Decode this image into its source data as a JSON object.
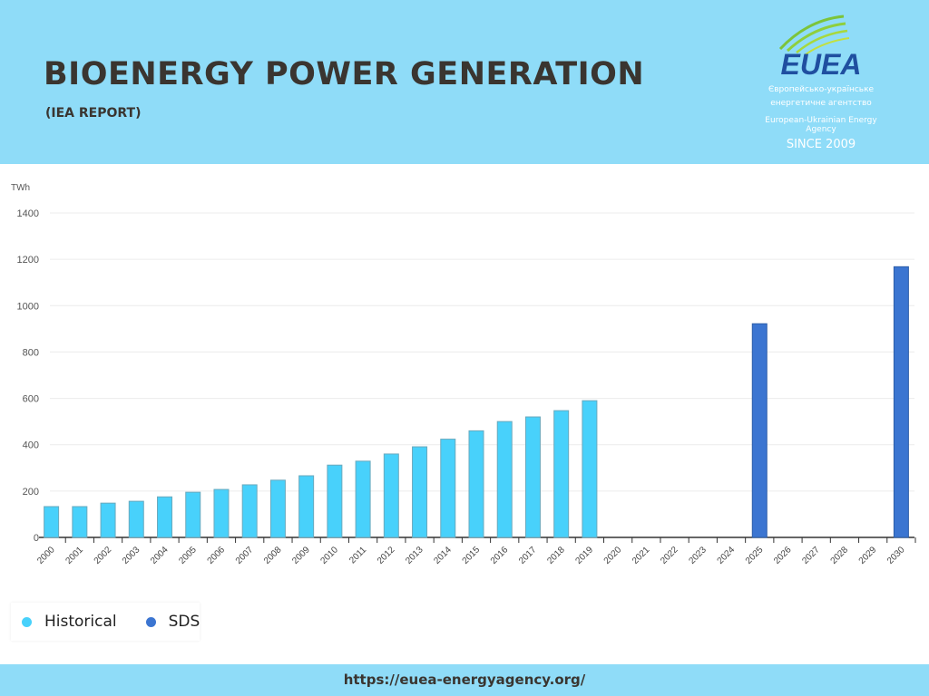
{
  "header": {
    "title": "BIOENERGY POWER GENERATION",
    "subtitle": "(IEA REPORT)"
  },
  "logo": {
    "brand": "EUEA",
    "line_ua_1": "Європейсько-українське",
    "line_ua_2": "енергетичне агентство",
    "line_en": "European-Ukrainian Energy Agency",
    "since": "SINCE 2009"
  },
  "footer": {
    "url": "https://euea-energyagency.org/"
  },
  "chart_data": {
    "type": "bar",
    "ylabel": "TWh",
    "ylim": [
      0,
      1400
    ],
    "yticks": [
      0,
      200,
      400,
      600,
      800,
      1000,
      1200,
      1400
    ],
    "grid": true,
    "legend_placement": "bottom-left",
    "categories": [
      "2000",
      "2001",
      "2002",
      "2003",
      "2004",
      "2005",
      "2006",
      "2007",
      "2008",
      "2009",
      "2010",
      "2011",
      "2012",
      "2013",
      "2014",
      "2015",
      "2016",
      "2017",
      "2018",
      "2019",
      "2020",
      "2021",
      "2022",
      "2023",
      "2024",
      "2025",
      "2026",
      "2027",
      "2028",
      "2029",
      "2030"
    ],
    "series": [
      {
        "name": "Historical",
        "color": "#48d1fb",
        "values": [
          133,
          133,
          148,
          156,
          175,
          195,
          207,
          227,
          247,
          266,
          312,
          329,
          360,
          391,
          424,
          460,
          500,
          520,
          547,
          590,
          null,
          null,
          null,
          null,
          null,
          null,
          null,
          null,
          null,
          null,
          null
        ]
      },
      {
        "name": "SDS",
        "color": "#3b75d1",
        "values": [
          null,
          null,
          null,
          null,
          null,
          null,
          null,
          null,
          null,
          null,
          null,
          null,
          null,
          null,
          null,
          null,
          null,
          null,
          null,
          null,
          null,
          null,
          null,
          null,
          null,
          922,
          null,
          null,
          null,
          null,
          1168
        ]
      }
    ]
  }
}
